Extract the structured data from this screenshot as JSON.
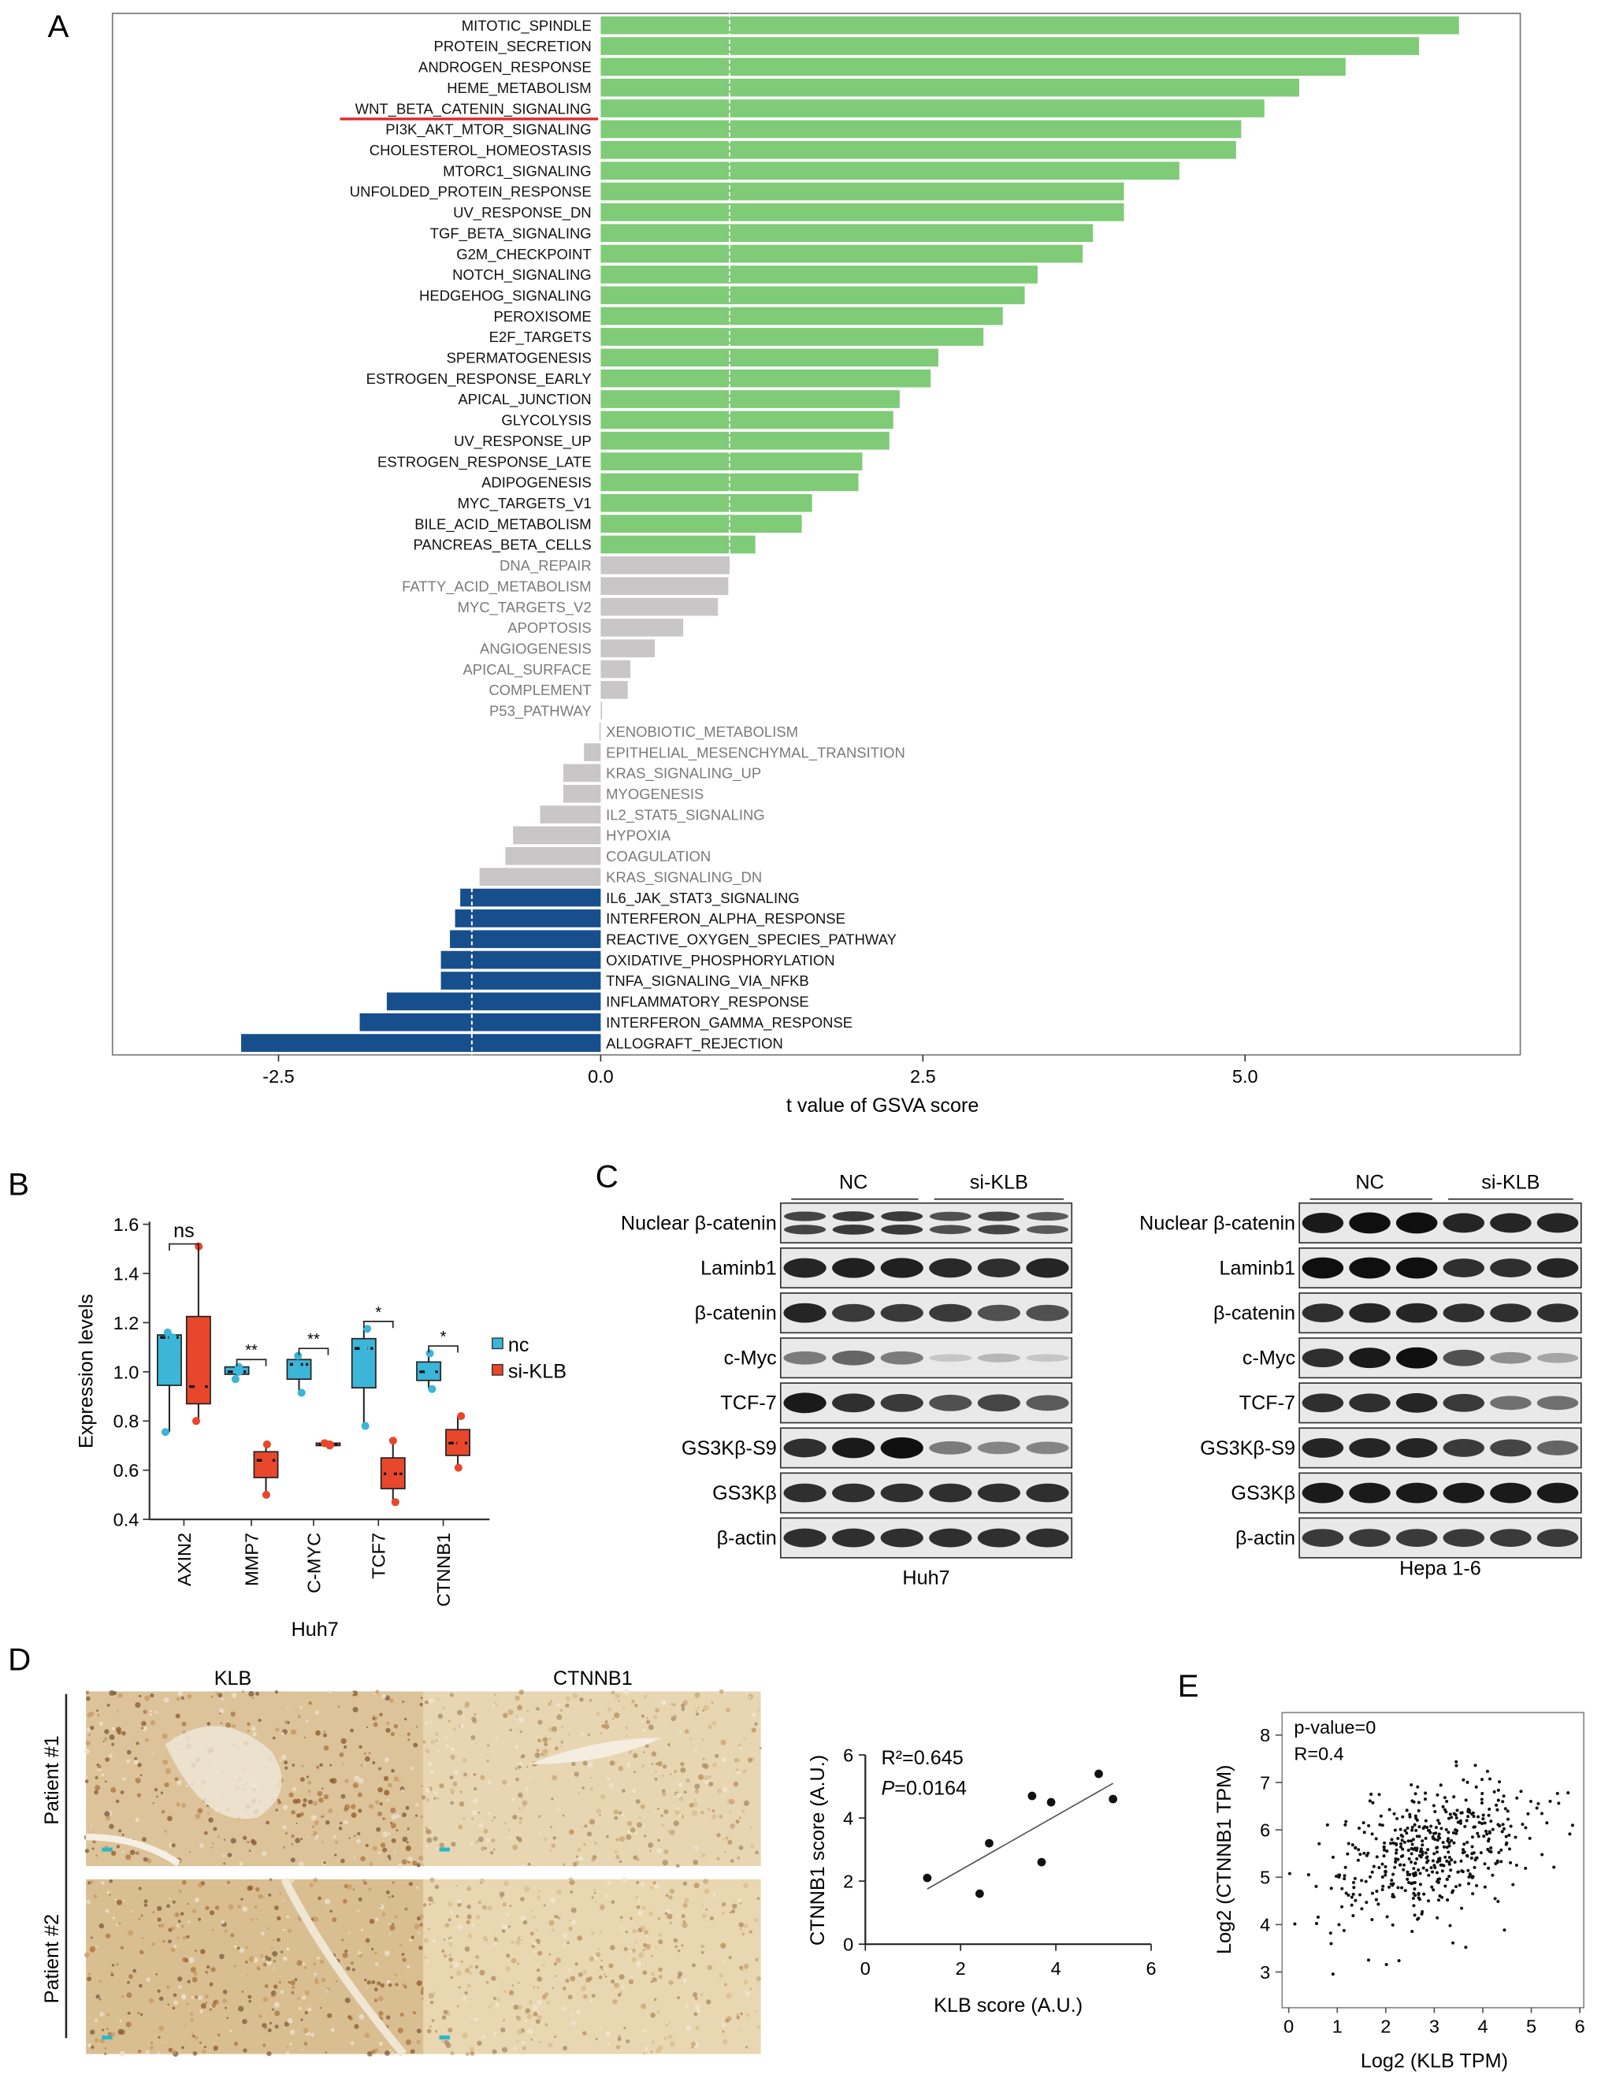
{
  "panels": {
    "a": "A",
    "b": "B",
    "c": "C",
    "d": "D",
    "e": "E"
  },
  "colors": {
    "sig_up": "#7fcb77",
    "ns": "#c9c6c7",
    "sig_down": "#164f8c",
    "nc": "#3bb5d8",
    "si": "#e8472b",
    "highlight": "#e0262b"
  },
  "chart_data": [
    {
      "type": "bar",
      "orientation": "horizontal",
      "title": "",
      "xlabel": "t value of GSVA score",
      "xticks": [
        "-2.5",
        "0.0",
        "2.5",
        "5.0"
      ],
      "xtick_values": [
        -2.5,
        0,
        2.5,
        5.0
      ],
      "xlim": [
        -3.8,
        7.1
      ],
      "threshold_lines": [
        1,
        -1
      ],
      "highlighted": "WNT_BETA_CATENIN_SIGNALING",
      "bars": [
        {
          "label": "MITOTIC_SPINDLE",
          "value": 6.66,
          "group": "up"
        },
        {
          "label": "PROTEIN_SECRETION",
          "value": 6.35,
          "group": "up"
        },
        {
          "label": "ANDROGEN_RESPONSE",
          "value": 5.78,
          "group": "up"
        },
        {
          "label": "HEME_METABOLISM",
          "value": 5.42,
          "group": "up"
        },
        {
          "label": "WNT_BETA_CATENIN_SIGNALING",
          "value": 5.15,
          "group": "up"
        },
        {
          "label": "PI3K_AKT_MTOR_SIGNALING",
          "value": 4.97,
          "group": "up"
        },
        {
          "label": "CHOLESTEROL_HOMEOSTASIS",
          "value": 4.93,
          "group": "up"
        },
        {
          "label": "MTORC1_SIGNALING",
          "value": 4.49,
          "group": "up"
        },
        {
          "label": "UNFOLDED_PROTEIN_RESPONSE",
          "value": 4.06,
          "group": "up"
        },
        {
          "label": "UV_RESPONSE_DN",
          "value": 4.06,
          "group": "up"
        },
        {
          "label": "TGF_BETA_SIGNALING",
          "value": 3.82,
          "group": "up"
        },
        {
          "label": "G2M_CHECKPOINT",
          "value": 3.74,
          "group": "up"
        },
        {
          "label": "NOTCH_SIGNALING",
          "value": 3.39,
          "group": "up"
        },
        {
          "label": "HEDGEHOG_SIGNALING",
          "value": 3.29,
          "group": "up"
        },
        {
          "label": "PEROXISOME",
          "value": 3.12,
          "group": "up"
        },
        {
          "label": "E2F_TARGETS",
          "value": 2.97,
          "group": "up"
        },
        {
          "label": "SPERMATOGENESIS",
          "value": 2.62,
          "group": "up"
        },
        {
          "label": "ESTROGEN_RESPONSE_EARLY",
          "value": 2.56,
          "group": "up"
        },
        {
          "label": "APICAL_JUNCTION",
          "value": 2.32,
          "group": "up"
        },
        {
          "label": "GLYCOLYSIS",
          "value": 2.27,
          "group": "up"
        },
        {
          "label": "UV_RESPONSE_UP",
          "value": 2.24,
          "group": "up"
        },
        {
          "label": "ESTROGEN_RESPONSE_LATE",
          "value": 2.03,
          "group": "up"
        },
        {
          "label": "ADIPOGENESIS",
          "value": 2.0,
          "group": "up"
        },
        {
          "label": "MYC_TARGETS_V1",
          "value": 1.64,
          "group": "up"
        },
        {
          "label": "BILE_ACID_METABOLISM",
          "value": 1.56,
          "group": "up"
        },
        {
          "label": "PANCREAS_BETA_CELLS",
          "value": 1.2,
          "group": "up"
        },
        {
          "label": "DNA_REPAIR",
          "value": 1.0,
          "group": "ns"
        },
        {
          "label": "FATTY_ACID_METABOLISM",
          "value": 0.99,
          "group": "ns"
        },
        {
          "label": "MYC_TARGETS_V2",
          "value": 0.91,
          "group": "ns"
        },
        {
          "label": "APOPTOSIS",
          "value": 0.64,
          "group": "ns"
        },
        {
          "label": "ANGIOGENESIS",
          "value": 0.42,
          "group": "ns"
        },
        {
          "label": "APICAL_SURFACE",
          "value": 0.23,
          "group": "ns"
        },
        {
          "label": "COMPLEMENT",
          "value": 0.21,
          "group": "ns"
        },
        {
          "label": "P53_PATHWAY",
          "value": 0.01,
          "group": "ns"
        },
        {
          "label": "XENOBIOTIC_METABOLISM",
          "value": -0.01,
          "group": "ns"
        },
        {
          "label": "EPITHELIAL_MESENCHYMAL_TRANSITION",
          "value": -0.13,
          "group": "ns"
        },
        {
          "label": "KRAS_SIGNALING_UP",
          "value": -0.29,
          "group": "ns"
        },
        {
          "label": "MYOGENESIS",
          "value": -0.29,
          "group": "ns"
        },
        {
          "label": "IL2_STAT5_SIGNALING",
          "value": -0.47,
          "group": "ns"
        },
        {
          "label": "HYPOXIA",
          "value": -0.68,
          "group": "ns"
        },
        {
          "label": "COAGULATION",
          "value": -0.74,
          "group": "ns"
        },
        {
          "label": "KRAS_SIGNALING_DN",
          "value": -0.94,
          "group": "ns"
        },
        {
          "label": "IL6_JAK_STAT3_SIGNALING",
          "value": -1.09,
          "group": "down"
        },
        {
          "label": "INTERFERON_ALPHA_RESPONSE",
          "value": -1.13,
          "group": "down"
        },
        {
          "label": "REACTIVE_OXYGEN_SPECIES_PATHWAY",
          "value": -1.17,
          "group": "down"
        },
        {
          "label": "OXIDATIVE_PHOSPHORYLATION",
          "value": -1.24,
          "group": "down"
        },
        {
          "label": "TNFA_SIGNALING_VIA_NFKB",
          "value": -1.24,
          "group": "down"
        },
        {
          "label": "INFLAMMATORY_RESPONSE",
          "value": -1.66,
          "group": "down"
        },
        {
          "label": "INTERFERON_GAMMA_RESPONSE",
          "value": -1.87,
          "group": "down"
        },
        {
          "label": "ALLOGRAFT_REJECTION",
          "value": -2.79,
          "group": "down"
        }
      ]
    },
    {
      "type": "box",
      "ylabel": "Expression levels",
      "xlabel": "Huh7",
      "ylim": [
        0.4,
        1.6
      ],
      "yticks": [
        "0.4",
        "0.6",
        "0.8",
        "1.0",
        "1.2",
        "1.4",
        "1.6"
      ],
      "legend": [
        "nc",
        "si-KLB"
      ],
      "legend_position": "right",
      "categories": [
        {
          "name": "AXIN2",
          "sig": "ns",
          "nc": {
            "min": 0.755,
            "q1": 0.945,
            "median": 1.14,
            "q3": 1.15,
            "max": 1.16,
            "points": [
              0.755,
              1.14,
              1.16
            ]
          },
          "si": {
            "min": 0.8,
            "q1": 0.87,
            "median": 0.94,
            "q3": 1.225,
            "max": 1.51,
            "points": [
              0.8,
              0.94,
              1.51
            ]
          }
        },
        {
          "name": "MMP7",
          "sig": "**",
          "nc": {
            "min": 0.97,
            "q1": 0.99,
            "median": 1.0,
            "q3": 1.02,
            "max": 1.02,
            "points": [
              0.97,
              1.0,
              1.02
            ]
          },
          "si": {
            "min": 0.5,
            "q1": 0.57,
            "median": 0.64,
            "q3": 0.675,
            "max": 0.705,
            "points": [
              0.5,
              0.64,
              0.705
            ]
          }
        },
        {
          "name": "C-MYC",
          "sig": "**",
          "nc": {
            "min": 0.915,
            "q1": 0.97,
            "median": 1.03,
            "q3": 1.05,
            "max": 1.065,
            "points": [
              0.915,
              1.03,
              1.065
            ]
          },
          "si": {
            "min": 0.7,
            "q1": 0.7,
            "median": 0.705,
            "q3": 0.71,
            "max": 0.71,
            "points": [
              0.7,
              0.705,
              0.71
            ]
          }
        },
        {
          "name": "TCF7",
          "sig": "*",
          "nc": {
            "min": 0.78,
            "q1": 0.935,
            "median": 1.095,
            "q3": 1.135,
            "max": 1.175,
            "points": [
              0.78,
              1.095,
              1.175
            ]
          },
          "si": {
            "min": 0.47,
            "q1": 0.525,
            "median": 0.585,
            "q3": 0.65,
            "max": 0.72,
            "points": [
              0.47,
              0.585,
              0.72
            ]
          }
        },
        {
          "name": "CTNNB1",
          "sig": "*",
          "nc": {
            "min": 0.93,
            "q1": 0.965,
            "median": 1.0,
            "q3": 1.04,
            "max": 1.075,
            "points": [
              0.93,
              1.0,
              1.075
            ]
          },
          "si": {
            "min": 0.61,
            "q1": 0.66,
            "median": 0.71,
            "q3": 0.765,
            "max": 0.82,
            "points": [
              0.61,
              0.71,
              0.82
            ]
          }
        }
      ]
    },
    {
      "type": "scatter",
      "xlabel": "KLB score (A.U.)",
      "ylabel": "CTNNB1 score (A.U.)",
      "xlim": [
        0,
        6
      ],
      "ylim": [
        0,
        6
      ],
      "xticks": [
        "0",
        "2",
        "4",
        "6"
      ],
      "yticks": [
        "0",
        "2",
        "4",
        "6"
      ],
      "annotation_r2": "R²=0.645",
      "annotation_p_label": "P",
      "annotation_p_value": "=0.0164",
      "points": [
        [
          1.3,
          2.1
        ],
        [
          2.4,
          1.6
        ],
        [
          2.6,
          3.2
        ],
        [
          3.5,
          4.7
        ],
        [
          3.7,
          2.6
        ],
        [
          3.9,
          4.5
        ],
        [
          4.9,
          5.4
        ],
        [
          5.2,
          4.6
        ]
      ],
      "fit_line": [
        [
          1.3,
          1.75
        ],
        [
          5.2,
          5.1
        ]
      ]
    },
    {
      "type": "scatter",
      "xlabel": "Log2 (KLB TPM)",
      "ylabel": "Log2 (CTNNB1 TPM)",
      "xlim": [
        0,
        6
      ],
      "ylim": [
        2.7,
        8.4
      ],
      "xticks": [
        "0",
        "1",
        "2",
        "3",
        "4",
        "5",
        "6"
      ],
      "yticks": [
        "3",
        "4",
        "5",
        "6",
        "7",
        "8"
      ],
      "annotation_p": "p-value=0",
      "annotation_r": "R=0.4",
      "correlation": 0.4
    }
  ],
  "western": {
    "groups": [
      "NC",
      "si-KLB"
    ],
    "blots": [
      {
        "cell_line": "Huh7",
        "rows": [
          {
            "label": "Nuclear β-catenin",
            "bands": [
              0.75,
              0.8,
              0.8,
              0.7,
              0.75,
              0.65
            ],
            "double": true
          },
          {
            "label": "Laminb1",
            "bands": [
              0.9,
              0.92,
              0.92,
              0.88,
              0.85,
              0.9
            ]
          },
          {
            "label": "β-catenin",
            "bands": [
              0.9,
              0.8,
              0.8,
              0.8,
              0.7,
              0.7
            ]
          },
          {
            "label": "c-Myc",
            "bands": [
              0.5,
              0.6,
              0.5,
              0.15,
              0.22,
              0.15
            ]
          },
          {
            "label": "TCF-7",
            "bands": [
              0.95,
              0.85,
              0.8,
              0.7,
              0.75,
              0.65
            ]
          },
          {
            "label": "GS3Kβ-S9",
            "bands": [
              0.85,
              0.95,
              1.0,
              0.5,
              0.45,
              0.45
            ]
          },
          {
            "label": "GS3Kβ",
            "bands": [
              0.85,
              0.85,
              0.85,
              0.85,
              0.85,
              0.85
            ]
          },
          {
            "label": "β-actin",
            "bands": [
              0.85,
              0.85,
              0.85,
              0.85,
              0.85,
              0.85
            ]
          }
        ]
      },
      {
        "cell_line": "Hepa 1-6",
        "rows": [
          {
            "label": "Nuclear β-catenin",
            "bands": [
              0.95,
              1.0,
              1.0,
              0.9,
              0.9,
              0.9
            ]
          },
          {
            "label": "Laminb1",
            "bands": [
              1.0,
              1.0,
              1.0,
              0.85,
              0.85,
              0.9
            ]
          },
          {
            "label": "β-catenin",
            "bands": [
              0.85,
              0.9,
              0.9,
              0.85,
              0.85,
              0.85
            ]
          },
          {
            "label": "c-Myc",
            "bands": [
              0.85,
              0.95,
              1.0,
              0.7,
              0.4,
              0.3
            ]
          },
          {
            "label": "TCF-7",
            "bands": [
              0.85,
              0.85,
              0.9,
              0.8,
              0.55,
              0.55
            ]
          },
          {
            "label": "GS3Kβ-S9",
            "bands": [
              0.9,
              0.9,
              0.9,
              0.8,
              0.75,
              0.6
            ]
          },
          {
            "label": "GS3Kβ",
            "bands": [
              0.95,
              0.95,
              0.95,
              0.95,
              0.95,
              0.95
            ]
          },
          {
            "label": "β-actin",
            "bands": [
              0.8,
              0.8,
              0.8,
              0.8,
              0.8,
              0.8
            ]
          }
        ]
      }
    ]
  },
  "ihc": {
    "columns": [
      "KLB",
      "CTNNB1"
    ],
    "rows": [
      "Patient #1",
      "Patient #2"
    ]
  }
}
